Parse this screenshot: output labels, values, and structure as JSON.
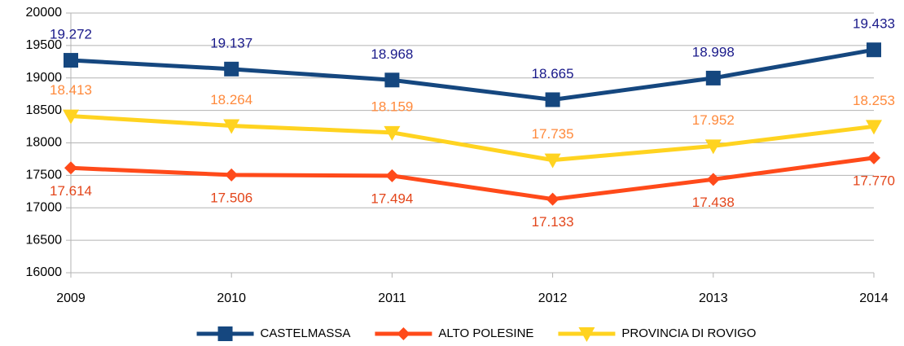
{
  "chart_data": {
    "type": "line",
    "categories": [
      "2009",
      "2010",
      "2011",
      "2012",
      "2013",
      "2014"
    ],
    "series": [
      {
        "name": "CASTELMASSA",
        "color": "#15477f",
        "label_color": "#1a1a8a",
        "marker": "square",
        "label_position": "above",
        "values": [
          19272,
          19137,
          18968,
          18665,
          18998,
          19433
        ],
        "value_labels": [
          "19.272",
          "19.137",
          "18.968",
          "18.665",
          "18.998",
          "19.433"
        ]
      },
      {
        "name": "ALTO POLESINE",
        "color": "#ff4a1a",
        "label_color": "#e3461b",
        "marker": "diamond",
        "label_position": "below",
        "values": [
          17614,
          17506,
          17494,
          17133,
          17438,
          17770
        ],
        "value_labels": [
          "17.614",
          "17.506",
          "17.494",
          "17.133",
          "17.438",
          "17.770"
        ]
      },
      {
        "name": "PROVINCIA DI ROVIGO",
        "color": "#ffd320",
        "label_color": "#ff8a3c",
        "marker": "triangle-down",
        "label_position": "above",
        "values": [
          18413,
          18264,
          18159,
          17735,
          17952,
          18253
        ],
        "value_labels": [
          "18.413",
          "18.264",
          "18.159",
          "17.735",
          "17.952",
          "18.253"
        ]
      }
    ],
    "ylim": [
      16000,
      20000
    ],
    "yticks": [
      16000,
      16500,
      17000,
      17500,
      18000,
      18500,
      19000,
      19500,
      20000
    ],
    "grid": true,
    "legend": "bottom"
  }
}
